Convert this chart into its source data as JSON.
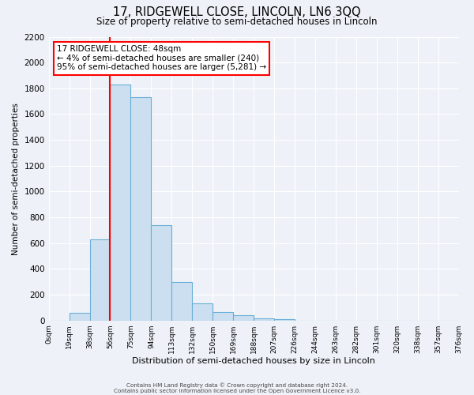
{
  "title": "17, RIDGEWELL CLOSE, LINCOLN, LN6 3QQ",
  "subtitle": "Size of property relative to semi-detached houses in Lincoln",
  "xlabel": "Distribution of semi-detached houses by size in Lincoln",
  "ylabel": "Number of semi-detached properties",
  "bin_labels": [
    "0sqm",
    "19sqm",
    "38sqm",
    "56sqm",
    "75sqm",
    "94sqm",
    "113sqm",
    "132sqm",
    "150sqm",
    "169sqm",
    "188sqm",
    "207sqm",
    "226sqm",
    "244sqm",
    "263sqm",
    "282sqm",
    "301sqm",
    "320sqm",
    "338sqm",
    "357sqm",
    "376sqm"
  ],
  "bar_heights": [
    0,
    60,
    630,
    1830,
    1730,
    740,
    300,
    130,
    65,
    40,
    15,
    10,
    0,
    0,
    0,
    0,
    0,
    0,
    0,
    0
  ],
  "bar_color": "#ccdff0",
  "bar_edge_color": "#6aaed6",
  "property_line_x": 3.0,
  "property_line_color": "red",
  "annotation_title": "17 RIDGEWELL CLOSE: 48sqm",
  "annotation_line1": "← 4% of semi-detached houses are smaller (240)",
  "annotation_line2": "95% of semi-detached houses are larger (5,281) →",
  "ylim": [
    0,
    2200
  ],
  "yticks": [
    0,
    200,
    400,
    600,
    800,
    1000,
    1200,
    1400,
    1600,
    1800,
    2000,
    2200
  ],
  "footer_line1": "Contains HM Land Registry data © Crown copyright and database right 2024.",
  "footer_line2": "Contains public sector information licensed under the Open Government Licence v3.0.",
  "background_color": "#eef2f8",
  "plot_bg_color": "#eef2f8",
  "grid_color": "#ffffff",
  "annotation_box_facecolor": "white",
  "annotation_box_edgecolor": "red"
}
